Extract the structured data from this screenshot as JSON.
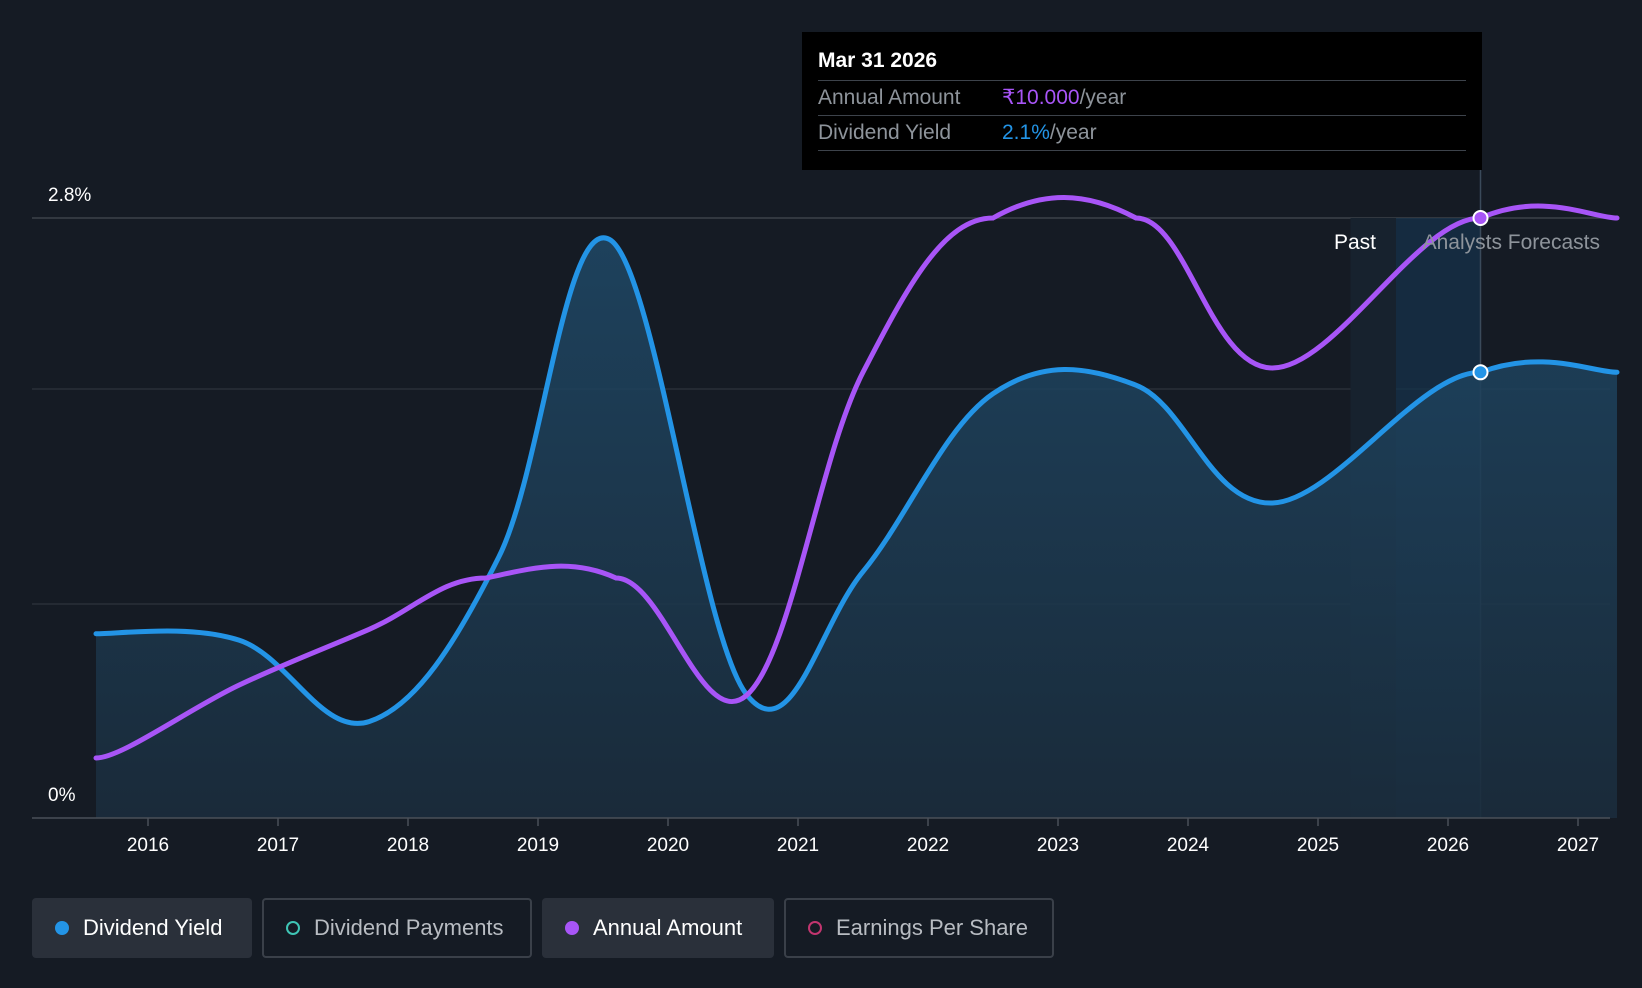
{
  "tooltip": {
    "date": "Mar 31 2026",
    "rows": [
      {
        "label": "Annual Amount",
        "value": "₹10.000",
        "unit": "/year",
        "color": "#a855f7"
      },
      {
        "label": "Dividend Yield",
        "value": "2.1%",
        "unit": "/year",
        "color": "#2394e6"
      }
    ]
  },
  "period_labels": {
    "past": "Past",
    "forecast": "Analysts Forecasts"
  },
  "legend": [
    {
      "label": "Dividend Yield",
      "color": "#2394e6",
      "active": true,
      "icon": "filled-dot"
    },
    {
      "label": "Dividend Payments",
      "color": "#3fc5b5",
      "active": false,
      "icon": "hollow-dot"
    },
    {
      "label": "Annual Amount",
      "color": "#a855f7",
      "active": true,
      "icon": "filled-dot"
    },
    {
      "label": "Earnings Per Share",
      "color": "#c2356f",
      "active": false,
      "icon": "hollow-dot"
    }
  ],
  "chart_data": {
    "type": "line",
    "y_tick_labels": [
      "2.8%",
      "0%"
    ],
    "ylim": [
      0,
      2.8
    ],
    "x_ticks": [
      "2016",
      "2017",
      "2018",
      "2019",
      "2020",
      "2021",
      "2022",
      "2023",
      "2024",
      "2025",
      "2026",
      "2027"
    ],
    "xlim": [
      2015.6,
      2027.3
    ],
    "grid": true,
    "series": [
      {
        "name": "Dividend Yield",
        "color": "#2394e6",
        "area": true,
        "points": [
          [
            2015.6,
            0.86
          ],
          [
            2016.7,
            0.83
          ],
          [
            2017.7,
            0.45
          ],
          [
            2018.7,
            1.22
          ],
          [
            2019.55,
            2.7
          ],
          [
            2020.6,
            0.58
          ],
          [
            2021.5,
            1.15
          ],
          [
            2022.5,
            1.98
          ],
          [
            2023.6,
            2.02
          ],
          [
            2024.65,
            1.47
          ],
          [
            2026.25,
            2.08
          ],
          [
            2027.3,
            2.08
          ]
        ]
      },
      {
        "name": "Annual Amount",
        "color": "#a855f7",
        "area": false,
        "points": [
          [
            2015.6,
            0.28
          ],
          [
            2016.7,
            0.62
          ],
          [
            2017.7,
            0.88
          ],
          [
            2018.6,
            1.12
          ],
          [
            2019.6,
            1.12
          ],
          [
            2020.6,
            0.57
          ],
          [
            2021.5,
            2.08
          ],
          [
            2022.5,
            2.8
          ],
          [
            2023.6,
            2.8
          ],
          [
            2024.65,
            2.1
          ],
          [
            2026.25,
            2.8
          ],
          [
            2027.3,
            2.8
          ]
        ]
      }
    ],
    "highlight_x": 2026.25,
    "forecast_start": 2025.6
  }
}
